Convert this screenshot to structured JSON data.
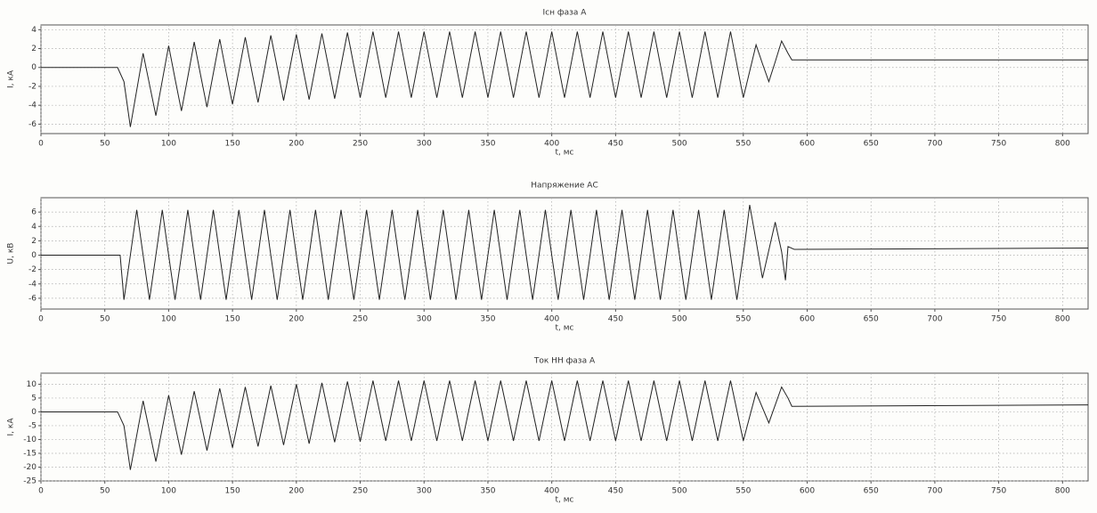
{
  "chart_data": [
    {
      "type": "line",
      "title": "Iсн фаза А",
      "xlabel": "t, мс",
      "ylabel": "I, кА",
      "color": "#222",
      "grid": true,
      "xlim": [
        0,
        820
      ],
      "xticks": [
        0,
        50,
        100,
        150,
        200,
        250,
        300,
        350,
        400,
        450,
        500,
        550,
        600,
        650,
        700,
        750,
        800
      ],
      "ylim": [
        -7,
        4.5
      ],
      "yticks": [
        -6,
        -4,
        -2,
        0,
        2,
        4
      ],
      "x": [
        0,
        60,
        65,
        70,
        75,
        80,
        85,
        90,
        95,
        100,
        105,
        110,
        115,
        120,
        125,
        130,
        135,
        140,
        145,
        150,
        155,
        160,
        165,
        170,
        175,
        180,
        185,
        190,
        195,
        200,
        205,
        210,
        215,
        220,
        225,
        230,
        235,
        240,
        245,
        250,
        255,
        260,
        265,
        270,
        275,
        280,
        285,
        290,
        295,
        300,
        305,
        310,
        315,
        320,
        325,
        330,
        335,
        340,
        345,
        350,
        355,
        360,
        365,
        370,
        375,
        380,
        385,
        390,
        395,
        400,
        405,
        410,
        415,
        420,
        425,
        430,
        435,
        440,
        445,
        450,
        455,
        460,
        465,
        470,
        475,
        480,
        485,
        490,
        495,
        500,
        505,
        510,
        515,
        520,
        525,
        530,
        535,
        540,
        545,
        550,
        555,
        560,
        565,
        570,
        575,
        580,
        585,
        588,
        820
      ],
      "values": [
        0,
        0,
        -1.5,
        -6.3,
        -2.4,
        1.5,
        -1.8,
        -5.1,
        -1.4,
        2.3,
        -1.2,
        -4.6,
        -1.0,
        2.7,
        -0.8,
        -4.2,
        -0.6,
        3.0,
        -0.5,
        -3.9,
        -0.4,
        3.2,
        -0.3,
        -3.7,
        -0.2,
        3.4,
        0,
        -3.5,
        0,
        3.5,
        0,
        -3.4,
        0.1,
        3.6,
        0.2,
        -3.3,
        0.2,
        3.7,
        0.2,
        -3.2,
        0.3,
        3.8,
        0.3,
        -3.2,
        0.3,
        3.8,
        0.3,
        -3.2,
        0.3,
        3.8,
        0.3,
        -3.2,
        0.3,
        3.8,
        0.3,
        -3.2,
        0.3,
        3.8,
        0.3,
        -3.2,
        0.3,
        3.8,
        0.3,
        -3.2,
        0.3,
        3.8,
        0.3,
        -3.2,
        0.3,
        3.8,
        0.3,
        -3.2,
        0.3,
        3.8,
        0.3,
        -3.2,
        0.3,
        3.8,
        0.3,
        -3.2,
        0.3,
        3.8,
        0.3,
        -3.2,
        0.3,
        3.8,
        0.3,
        -3.2,
        0.3,
        3.8,
        0.3,
        -3.2,
        0.3,
        3.8,
        0.3,
        -3.2,
        0.3,
        3.8,
        0.3,
        -3.2,
        -0.4,
        2.4,
        0.4,
        -1.5,
        0.6,
        2.8,
        1.5,
        0.8,
        0.8
      ]
    },
    {
      "type": "line",
      "title": "Напряжение АС",
      "xlabel": "t, мс",
      "ylabel": "U, кВ",
      "color": "#222",
      "grid": true,
      "xlim": [
        0,
        820
      ],
      "xticks": [
        0,
        50,
        100,
        150,
        200,
        250,
        300,
        350,
        400,
        450,
        500,
        550,
        600,
        650,
        700,
        750,
        800
      ],
      "ylim": [
        -7.5,
        8
      ],
      "yticks": [
        -6,
        -4,
        -2,
        0,
        2,
        4,
        6
      ],
      "x": [
        0,
        62,
        65,
        70,
        75,
        80,
        85,
        90,
        95,
        100,
        105,
        110,
        115,
        120,
        125,
        130,
        135,
        140,
        145,
        150,
        155,
        160,
        165,
        170,
        175,
        180,
        185,
        190,
        195,
        200,
        205,
        210,
        215,
        220,
        225,
        230,
        235,
        240,
        245,
        250,
        255,
        260,
        265,
        270,
        275,
        280,
        285,
        290,
        295,
        300,
        305,
        310,
        315,
        320,
        325,
        330,
        335,
        340,
        345,
        350,
        355,
        360,
        365,
        370,
        375,
        380,
        385,
        390,
        395,
        400,
        405,
        410,
        415,
        420,
        425,
        430,
        435,
        440,
        445,
        450,
        455,
        460,
        465,
        470,
        475,
        480,
        485,
        490,
        495,
        500,
        505,
        510,
        515,
        520,
        525,
        530,
        535,
        540,
        545,
        550,
        555,
        560,
        565,
        570,
        575,
        580,
        583,
        585,
        590,
        820
      ],
      "values": [
        0,
        0,
        -6.2,
        0,
        6.3,
        0,
        -6.2,
        0,
        6.3,
        0,
        -6.2,
        0,
        6.3,
        0,
        -6.2,
        0,
        6.3,
        0,
        -6.2,
        0,
        6.3,
        0,
        -6.2,
        0,
        6.3,
        0,
        -6.2,
        0,
        6.3,
        0,
        -6.2,
        0,
        6.3,
        0,
        -6.2,
        0,
        6.3,
        0,
        -6.2,
        0,
        6.3,
        0,
        -6.2,
        0,
        6.3,
        0,
        -6.2,
        0,
        6.3,
        0,
        -6.2,
        0,
        6.3,
        0,
        -6.2,
        0,
        6.3,
        0,
        -6.2,
        0,
        6.3,
        0,
        -6.2,
        0,
        6.3,
        0,
        -6.2,
        0,
        6.3,
        0,
        -6.2,
        0,
        6.3,
        0,
        -6.2,
        0,
        6.3,
        0,
        -6.2,
        0,
        6.3,
        0,
        -6.2,
        0,
        6.3,
        0,
        -6.2,
        0,
        6.3,
        0,
        -6.2,
        0,
        6.3,
        0,
        -6.2,
        0,
        6.3,
        0,
        -6.2,
        0,
        7.0,
        2,
        -3.2,
        0.7,
        4.6,
        0.5,
        -3.5,
        1.2,
        0.8,
        1.0
      ]
    },
    {
      "type": "line",
      "title": "Ток НН фаза А",
      "xlabel": "t, мс",
      "ylabel": "I, кА",
      "color": "#222",
      "grid": true,
      "xlim": [
        0,
        820
      ],
      "xticks": [
        0,
        50,
        100,
        150,
        200,
        250,
        300,
        350,
        400,
        450,
        500,
        550,
        600,
        650,
        700,
        750,
        800
      ],
      "ylim": [
        -25,
        14
      ],
      "yticks": [
        -25,
        -20,
        -15,
        -10,
        -5,
        0,
        5,
        10
      ],
      "x": [
        0,
        60,
        65,
        70,
        75,
        80,
        85,
        90,
        95,
        100,
        105,
        110,
        115,
        120,
        125,
        130,
        135,
        140,
        145,
        150,
        155,
        160,
        165,
        170,
        175,
        180,
        185,
        190,
        195,
        200,
        205,
        210,
        215,
        220,
        225,
        230,
        235,
        240,
        245,
        250,
        255,
        260,
        265,
        270,
        275,
        280,
        285,
        290,
        295,
        300,
        305,
        310,
        315,
        320,
        325,
        330,
        335,
        340,
        345,
        350,
        355,
        360,
        365,
        370,
        375,
        380,
        385,
        390,
        395,
        400,
        405,
        410,
        415,
        420,
        425,
        430,
        435,
        440,
        445,
        450,
        455,
        460,
        465,
        470,
        475,
        480,
        485,
        490,
        495,
        500,
        505,
        510,
        515,
        520,
        525,
        530,
        535,
        540,
        545,
        550,
        555,
        560,
        565,
        570,
        575,
        580,
        585,
        588,
        820
      ],
      "values": [
        0,
        0,
        -5,
        -21,
        -8.5,
        4,
        -7,
        -18,
        -6,
        6,
        -4.8,
        -15.5,
        -4,
        7.5,
        -3.2,
        -14,
        -2.8,
        8.5,
        -2.2,
        -13,
        -2,
        9,
        -1.8,
        -12.5,
        -1.5,
        9.5,
        -1.2,
        -12,
        -1,
        10,
        -0.8,
        -11.5,
        -0.5,
        10.5,
        -0.3,
        -11,
        -0.2,
        11,
        0.2,
        -10.8,
        0.3,
        11.3,
        0.5,
        -10.5,
        0.5,
        11.3,
        0.5,
        -10.5,
        0.5,
        11.3,
        0.5,
        -10.5,
        0.5,
        11.3,
        0.5,
        -10.5,
        0.5,
        11.3,
        0.5,
        -10.5,
        0.5,
        11.3,
        0.5,
        -10.5,
        0.5,
        11.3,
        0.5,
        -10.5,
        0.5,
        11.3,
        0.5,
        -10.5,
        0.5,
        11.3,
        0.5,
        -10.5,
        0.5,
        11.3,
        0.5,
        -10.5,
        0.5,
        11.3,
        0.5,
        -10.5,
        0.5,
        11.3,
        0.5,
        -10.5,
        0.5,
        11.3,
        0.5,
        -10.5,
        0.5,
        11.3,
        0.5,
        -10.5,
        0.5,
        11.3,
        0.5,
        -10.5,
        -1.7,
        7,
        1.5,
        -4,
        2.5,
        9,
        5,
        2,
        2.5
      ]
    }
  ]
}
